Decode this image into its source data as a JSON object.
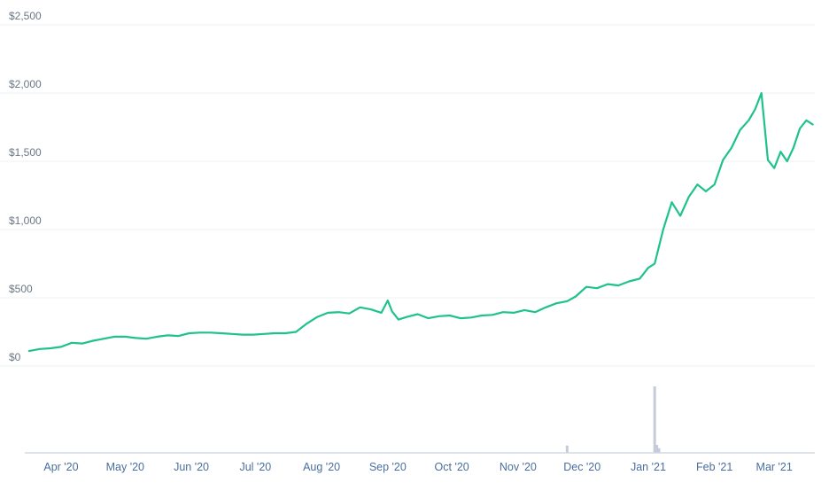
{
  "chart_data": {
    "type": "line",
    "title": "",
    "xlabel": "",
    "ylabel": "",
    "ylim": [
      0,
      2500
    ],
    "y_ticks": [
      "$2,500",
      "$2,000",
      "$1,500",
      "$1,000",
      "$500",
      "$0"
    ],
    "y_tick_values": [
      2500,
      2000,
      1500,
      1000,
      500,
      0
    ],
    "x_ticks": [
      "Apr '20",
      "May '20",
      "Jun '20",
      "Jul '20",
      "Aug '20",
      "Sep '20",
      "Oct '20",
      "Nov '20",
      "Dec '20",
      "Jan '21",
      "Feb '21",
      "Mar '21"
    ],
    "x_tick_dates": [
      "2020-04-01",
      "2020-05-01",
      "2020-06-01",
      "2020-07-01",
      "2020-08-01",
      "2020-09-01",
      "2020-10-01",
      "2020-11-01",
      "2020-12-01",
      "2021-01-01",
      "2021-02-01",
      "2021-03-01"
    ],
    "grid": true,
    "colors": {
      "line": "#1fc28a",
      "volume": "#c6cbd9",
      "tick_text": "#4a6ea0"
    },
    "series": [
      {
        "x": [
          "2020-03-17",
          "2020-03-22",
          "2020-03-27",
          "2020-04-01",
          "2020-04-06",
          "2020-04-11",
          "2020-04-16",
          "2020-04-21",
          "2020-04-26",
          "2020-05-01",
          "2020-05-06",
          "2020-05-11",
          "2020-05-16",
          "2020-05-21",
          "2020-05-26",
          "2020-05-31",
          "2020-06-05",
          "2020-06-10",
          "2020-06-15",
          "2020-06-20",
          "2020-06-25",
          "2020-06-30",
          "2020-07-05",
          "2020-07-10",
          "2020-07-15",
          "2020-07-20",
          "2020-07-25",
          "2020-07-30",
          "2020-08-04",
          "2020-08-09",
          "2020-08-14",
          "2020-08-19",
          "2020-08-24",
          "2020-08-29",
          "2020-09-01",
          "2020-09-03",
          "2020-09-06",
          "2020-09-10",
          "2020-09-15",
          "2020-09-20",
          "2020-09-25",
          "2020-09-30",
          "2020-10-05",
          "2020-10-10",
          "2020-10-15",
          "2020-10-20",
          "2020-10-25",
          "2020-10-30",
          "2020-11-04",
          "2020-11-09",
          "2020-11-14",
          "2020-11-19",
          "2020-11-24",
          "2020-11-28",
          "2020-12-03",
          "2020-12-08",
          "2020-12-13",
          "2020-12-18",
          "2020-12-23",
          "2020-12-28",
          "2021-01-01",
          "2021-01-04",
          "2021-01-08",
          "2021-01-12",
          "2021-01-16",
          "2021-01-20",
          "2021-01-24",
          "2021-01-28",
          "2021-02-01",
          "2021-02-05",
          "2021-02-09",
          "2021-02-13",
          "2021-02-17",
          "2021-02-20",
          "2021-02-23",
          "2021-02-26",
          "2021-03-01",
          "2021-03-04",
          "2021-03-07",
          "2021-03-10",
          "2021-03-13",
          "2021-03-16",
          "2021-03-19"
        ],
        "values": [
          110,
          125,
          130,
          140,
          170,
          165,
          185,
          200,
          215,
          215,
          205,
          200,
          215,
          225,
          220,
          240,
          245,
          245,
          240,
          235,
          230,
          230,
          235,
          240,
          240,
          250,
          310,
          360,
          390,
          395,
          385,
          430,
          415,
          390,
          480,
          400,
          340,
          360,
          380,
          350,
          365,
          370,
          350,
          355,
          370,
          375,
          395,
          390,
          410,
          395,
          430,
          460,
          475,
          510,
          580,
          570,
          600,
          590,
          620,
          640,
          720,
          750,
          1000,
          1200,
          1100,
          1240,
          1330,
          1280,
          1330,
          1510,
          1600,
          1730,
          1800,
          1880,
          2000,
          1510,
          1450,
          1570,
          1500,
          1600,
          1740,
          1800,
          1770
        ]
      }
    ],
    "volume_bars": {
      "x": [
        "2020-11-24",
        "2021-01-04",
        "2021-01-05",
        "2021-01-06"
      ],
      "values": [
        0.11,
        1.0,
        0.12,
        0.07
      ]
    }
  }
}
